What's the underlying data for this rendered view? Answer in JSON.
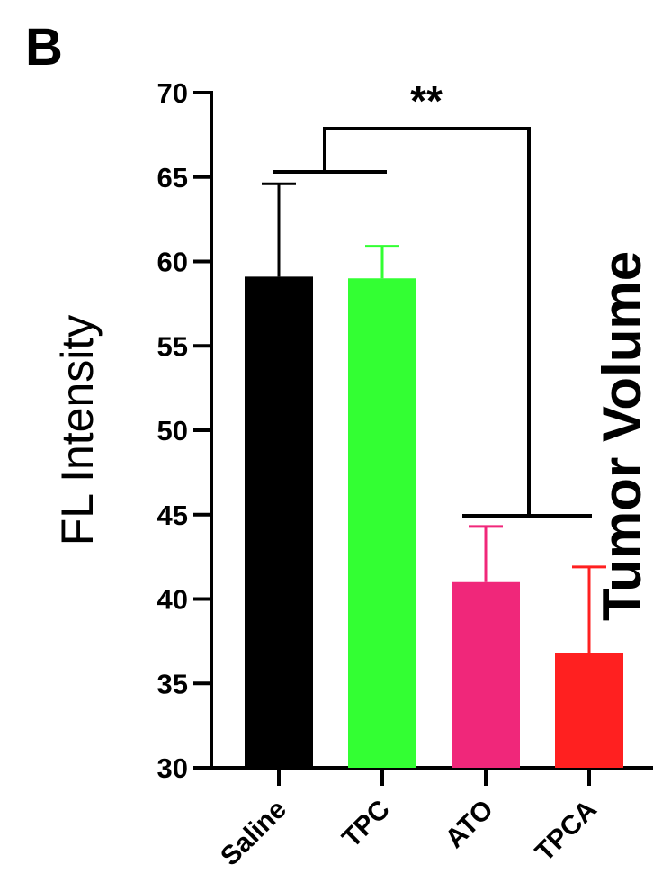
{
  "panel_label": "B",
  "clipped_right_text": "Tumor Volume",
  "chart_data": {
    "type": "bar",
    "title": "",
    "xlabel": "",
    "ylabel": "FL Intensity",
    "ylim": [
      30,
      70
    ],
    "yticks": [
      30,
      35,
      40,
      45,
      50,
      55,
      60,
      65,
      70
    ],
    "categories": [
      "Saline",
      "TPC",
      "ATO",
      "TPCA"
    ],
    "values": [
      59.1,
      59.0,
      41.0,
      36.8
    ],
    "errors": [
      5.5,
      1.9,
      3.3,
      5.1
    ],
    "colors": [
      "#000000",
      "#33ff33",
      "#f0277a",
      "#ff2020"
    ],
    "grid": false,
    "legend": "none",
    "annotations": [
      {
        "text": "**",
        "group_a": [
          "Saline",
          "TPC"
        ],
        "group_b": [
          "ATO",
          "TPCA"
        ]
      }
    ]
  }
}
